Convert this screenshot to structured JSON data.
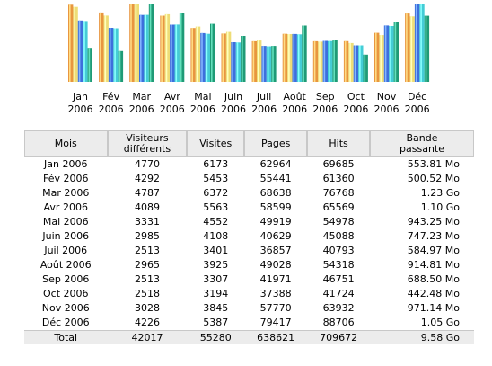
{
  "colors": {
    "visiteurs": "#e8963f",
    "visites": "#eedd77",
    "pages": "#3d6fdc",
    "hits": "#44ccd6",
    "bande_passante": "#1f9a76"
  },
  "chart_data": {
    "type": "bar",
    "categories": [
      "Jan 2006",
      "Fév 2006",
      "Mar 2006",
      "Avr 2006",
      "Mai 2006",
      "Juin 2006",
      "Juil 2006",
      "Août 2006",
      "Sep 2006",
      "Oct 2006",
      "Nov 2006",
      "Déc 2006"
    ],
    "series": [
      {
        "name": "Visiteurs différents",
        "values": [
          4770,
          4292,
          4787,
          4089,
          3331,
          2985,
          2513,
          2965,
          2513,
          2518,
          3028,
          4226
        ]
      },
      {
        "name": "Visites",
        "values": [
          6173,
          5453,
          6372,
          5563,
          4552,
          4108,
          3401,
          3925,
          3307,
          3194,
          3845,
          5387
        ]
      },
      {
        "name": "Pages",
        "values": [
          62964,
          55441,
          68638,
          58599,
          49919,
          40629,
          36857,
          49028,
          41971,
          37388,
          57770,
          79417
        ]
      },
      {
        "name": "Hits",
        "values": [
          69685,
          61360,
          76768,
          65569,
          54978,
          45088,
          40793,
          54318,
          46751,
          41724,
          63932,
          88706
        ]
      },
      {
        "name": "Bande passante",
        "values": [
          553.81,
          500.52,
          1259.52,
          1126.4,
          943.25,
          747.23,
          584.97,
          914.81,
          688.5,
          442.48,
          971.14,
          1075.2
        ]
      }
    ],
    "xlabel": "",
    "ylabel": "",
    "grid": false,
    "legend": "none"
  },
  "table": {
    "headers": {
      "mois": "Mois",
      "visiteurs": "Visiteurs\ndifférents",
      "visites": "Visites",
      "pages": "Pages",
      "hits": "Hits",
      "bande_passante": "Bande\npassante"
    },
    "rows": [
      {
        "mois": "Jan 2006",
        "visiteurs": "4770",
        "visites": "6173",
        "pages": "62964",
        "hits": "69685",
        "bw": "553.81 Mo"
      },
      {
        "mois": "Fév 2006",
        "visiteurs": "4292",
        "visites": "5453",
        "pages": "55441",
        "hits": "61360",
        "bw": "500.52 Mo"
      },
      {
        "mois": "Mar 2006",
        "visiteurs": "4787",
        "visites": "6372",
        "pages": "68638",
        "hits": "76768",
        "bw": "1.23 Go"
      },
      {
        "mois": "Avr 2006",
        "visiteurs": "4089",
        "visites": "5563",
        "pages": "58599",
        "hits": "65569",
        "bw": "1.10 Go"
      },
      {
        "mois": "Mai 2006",
        "visiteurs": "3331",
        "visites": "4552",
        "pages": "49919",
        "hits": "54978",
        "bw": "943.25 Mo"
      },
      {
        "mois": "Juin 2006",
        "visiteurs": "2985",
        "visites": "4108",
        "pages": "40629",
        "hits": "45088",
        "bw": "747.23 Mo"
      },
      {
        "mois": "Juil 2006",
        "visiteurs": "2513",
        "visites": "3401",
        "pages": "36857",
        "hits": "40793",
        "bw": "584.97 Mo"
      },
      {
        "mois": "Août 2006",
        "visiteurs": "2965",
        "visites": "3925",
        "pages": "49028",
        "hits": "54318",
        "bw": "914.81 Mo"
      },
      {
        "mois": "Sep 2006",
        "visiteurs": "2513",
        "visites": "3307",
        "pages": "41971",
        "hits": "46751",
        "bw": "688.50 Mo"
      },
      {
        "mois": "Oct 2006",
        "visiteurs": "2518",
        "visites": "3194",
        "pages": "37388",
        "hits": "41724",
        "bw": "442.48 Mo"
      },
      {
        "mois": "Nov 2006",
        "visiteurs": "3028",
        "visites": "3845",
        "pages": "57770",
        "hits": "63932",
        "bw": "971.14 Mo"
      },
      {
        "mois": "Déc 2006",
        "visiteurs": "4226",
        "visites": "5387",
        "pages": "79417",
        "hits": "88706",
        "bw": "1.05 Go"
      }
    ],
    "total": {
      "mois": "Total",
      "visiteurs": "42017",
      "visites": "55280",
      "pages": "638621",
      "hits": "709672",
      "bw": "9.58 Go"
    }
  }
}
